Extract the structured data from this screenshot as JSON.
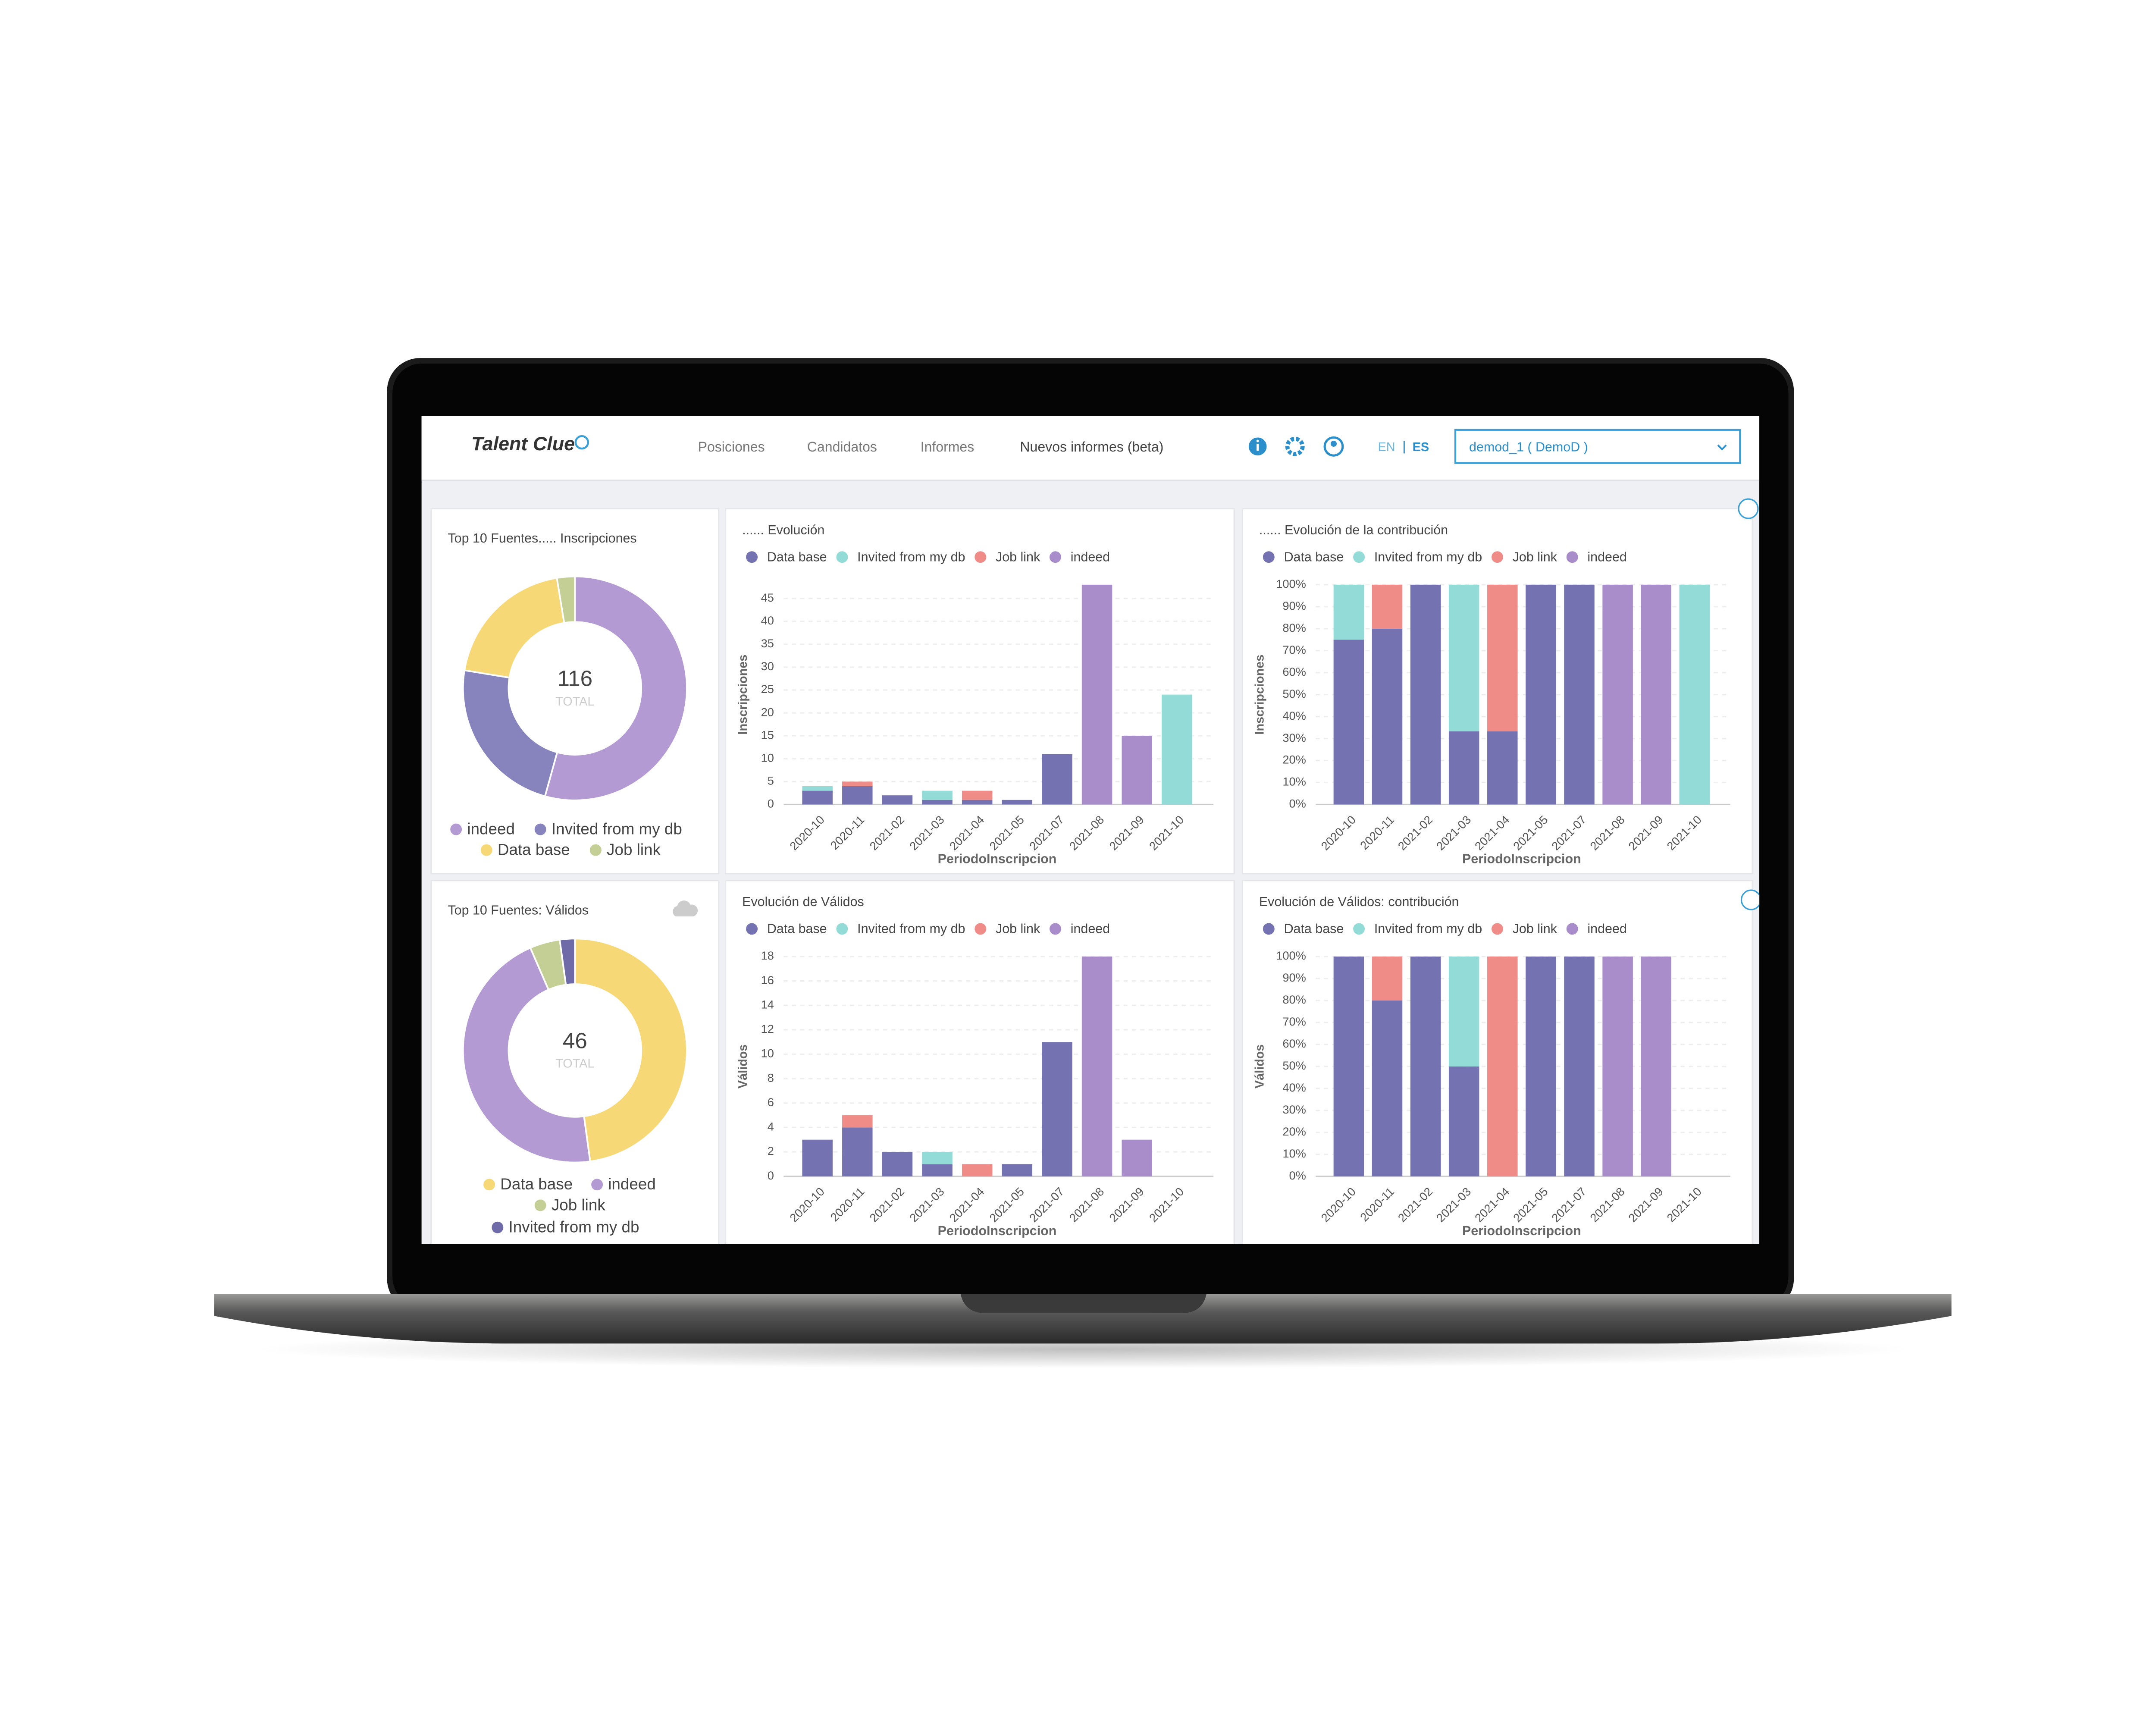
{
  "header": {
    "logo": "Talent Clue",
    "nav": [
      "Posiciones",
      "Candidatos",
      "Informes",
      "Nuevos informes (beta)"
    ],
    "languages": [
      "EN",
      "ES"
    ],
    "account": "demod_1 ( DemoD )"
  },
  "chart_data": [
    {
      "type": "pie",
      "title": "Top 10 Fuentes..... Inscripciones",
      "total": 116,
      "center_label": "TOTAL",
      "categories": [
        "indeed",
        "Invited from my db",
        "Data base",
        "Job link"
      ],
      "values": [
        63,
        27,
        23,
        3
      ],
      "colors": [
        "#b39ad2",
        "#8683bd",
        "#f6d976",
        "#c4cf95"
      ]
    },
    {
      "type": "bar",
      "stacked": true,
      "title": "...... Evolución",
      "ylabel": "Inscripciones",
      "xlabel": "PeriodoInscripcion",
      "categories": [
        "2020-10",
        "2020-11",
        "2021-02",
        "2021-03",
        "2021-04",
        "2021-05",
        "2021-07",
        "2021-08",
        "2021-09",
        "2021-10"
      ],
      "series": [
        {
          "name": "Data base",
          "color": "#7472b0",
          "values": [
            3,
            4,
            2,
            1,
            1,
            1,
            11,
            0,
            0,
            0
          ]
        },
        {
          "name": "Invited from my db",
          "color": "#93dbd6",
          "values": [
            1,
            0,
            0,
            2,
            0,
            0,
            0,
            0,
            0,
            24
          ]
        },
        {
          "name": "Job link",
          "color": "#ef8c87",
          "values": [
            0,
            1,
            0,
            0,
            2,
            0,
            0,
            0,
            0,
            0
          ]
        },
        {
          "name": "indeed",
          "color": "#a98cca",
          "values": [
            0,
            0,
            0,
            0,
            0,
            0,
            0,
            48,
            15,
            0
          ]
        }
      ],
      "ylim": [
        0,
        48
      ],
      "yticks": [
        0,
        5,
        10,
        15,
        20,
        25,
        30,
        35,
        40,
        45
      ],
      "grid": true
    },
    {
      "type": "bar",
      "stacked": true,
      "title": "...... Evolución de la contribución",
      "ylabel": "Inscripciones",
      "xlabel": "PeriodoInscripcion",
      "categories": [
        "2020-10",
        "2020-11",
        "2021-02",
        "2021-03",
        "2021-04",
        "2021-05",
        "2021-07",
        "2021-08",
        "2021-09",
        "2021-10"
      ],
      "series": [
        {
          "name": "Data base",
          "color": "#7472b0",
          "values": [
            75,
            80,
            100,
            33.3,
            33.3,
            100,
            100,
            0,
            0,
            0
          ]
        },
        {
          "name": "Invited from my db",
          "color": "#93dbd6",
          "values": [
            25,
            0,
            0,
            66.7,
            0,
            0,
            0,
            0,
            0,
            100
          ]
        },
        {
          "name": "Job link",
          "color": "#ef8c87",
          "values": [
            0,
            20,
            0,
            0,
            66.7,
            0,
            0,
            0,
            0,
            0
          ]
        },
        {
          "name": "indeed",
          "color": "#a98cca",
          "values": [
            0,
            0,
            0,
            0,
            0,
            0,
            0,
            100,
            100,
            0
          ]
        }
      ],
      "ylim": [
        0,
        100
      ],
      "yticks": [
        {
          "value": 0,
          "label": "0%"
        },
        {
          "value": 10,
          "label": "10%"
        },
        {
          "value": 20,
          "label": "20%"
        },
        {
          "value": 30,
          "label": "30%"
        },
        {
          "value": 40,
          "label": "40%"
        },
        {
          "value": 50,
          "label": "50%"
        },
        {
          "value": 60,
          "label": "60%"
        },
        {
          "value": 70,
          "label": "70%"
        },
        {
          "value": 80,
          "label": "80%"
        },
        {
          "value": 90,
          "label": "90%"
        },
        {
          "value": 100,
          "label": "100%"
        }
      ],
      "grid": true
    },
    {
      "type": "pie",
      "title": "Top 10 Fuentes: Válidos",
      "total": 46,
      "center_label": "TOTAL",
      "categories": [
        "Data base",
        "indeed",
        "Job link",
        "Invited from my db"
      ],
      "values": [
        22,
        21,
        2,
        1
      ],
      "colors": [
        "#f6d976",
        "#b39ad2",
        "#c4cf95",
        "#6f6ba8"
      ]
    },
    {
      "type": "bar",
      "stacked": true,
      "title": "Evolución de Válidos",
      "ylabel": "Válidos",
      "xlabel": "PeriodoInscripcion",
      "categories": [
        "2020-10",
        "2020-11",
        "2021-02",
        "2021-03",
        "2021-04",
        "2021-05",
        "2021-07",
        "2021-08",
        "2021-09",
        "2021-10"
      ],
      "series": [
        {
          "name": "Data base",
          "color": "#7472b0",
          "values": [
            3,
            4,
            2,
            1,
            0,
            1,
            11,
            0,
            0,
            0
          ]
        },
        {
          "name": "Invited from my db",
          "color": "#93dbd6",
          "values": [
            0,
            0,
            0,
            1,
            0,
            0,
            0,
            0,
            0,
            0
          ]
        },
        {
          "name": "Job link",
          "color": "#ef8c87",
          "values": [
            0,
            1,
            0,
            0,
            1,
            0,
            0,
            0,
            0,
            0
          ]
        },
        {
          "name": "indeed",
          "color": "#a98cca",
          "values": [
            0,
            0,
            0,
            0,
            0,
            0,
            0,
            18,
            3,
            0
          ]
        }
      ],
      "ylim": [
        0,
        18
      ],
      "yticks": [
        0,
        2,
        4,
        6,
        8,
        10,
        12,
        14,
        16,
        18
      ],
      "grid": true
    },
    {
      "type": "bar",
      "stacked": true,
      "title": "Evolución de Válidos: contribución",
      "ylabel": "Válidos",
      "xlabel": "PeriodoInscripcion",
      "categories": [
        "2020-10",
        "2020-11",
        "2021-02",
        "2021-03",
        "2021-04",
        "2021-05",
        "2021-07",
        "2021-08",
        "2021-09",
        "2021-10"
      ],
      "series": [
        {
          "name": "Data base",
          "color": "#7472b0",
          "values": [
            100,
            80,
            100,
            50,
            0,
            100,
            100,
            0,
            0,
            0
          ]
        },
        {
          "name": "Invited from my db",
          "color": "#93dbd6",
          "values": [
            0,
            0,
            0,
            50,
            0,
            0,
            0,
            0,
            0,
            0
          ]
        },
        {
          "name": "Job link",
          "color": "#ef8c87",
          "values": [
            0,
            20,
            0,
            0,
            100,
            0,
            0,
            0,
            0,
            0
          ]
        },
        {
          "name": "indeed",
          "color": "#a98cca",
          "values": [
            0,
            0,
            0,
            0,
            0,
            0,
            0,
            100,
            100,
            0
          ]
        }
      ],
      "ylim": [
        0,
        100
      ],
      "yticks": [
        {
          "value": 0,
          "label": "0%"
        },
        {
          "value": 10,
          "label": "10%"
        },
        {
          "value": 20,
          "label": "20%"
        },
        {
          "value": 30,
          "label": "30%"
        },
        {
          "value": 40,
          "label": "40%"
        },
        {
          "value": 50,
          "label": "50%"
        },
        {
          "value": 60,
          "label": "60%"
        },
        {
          "value": 70,
          "label": "70%"
        },
        {
          "value": 80,
          "label": "80%"
        },
        {
          "value": 90,
          "label": "90%"
        },
        {
          "value": 100,
          "label": "100%"
        }
      ],
      "grid": true
    }
  ]
}
